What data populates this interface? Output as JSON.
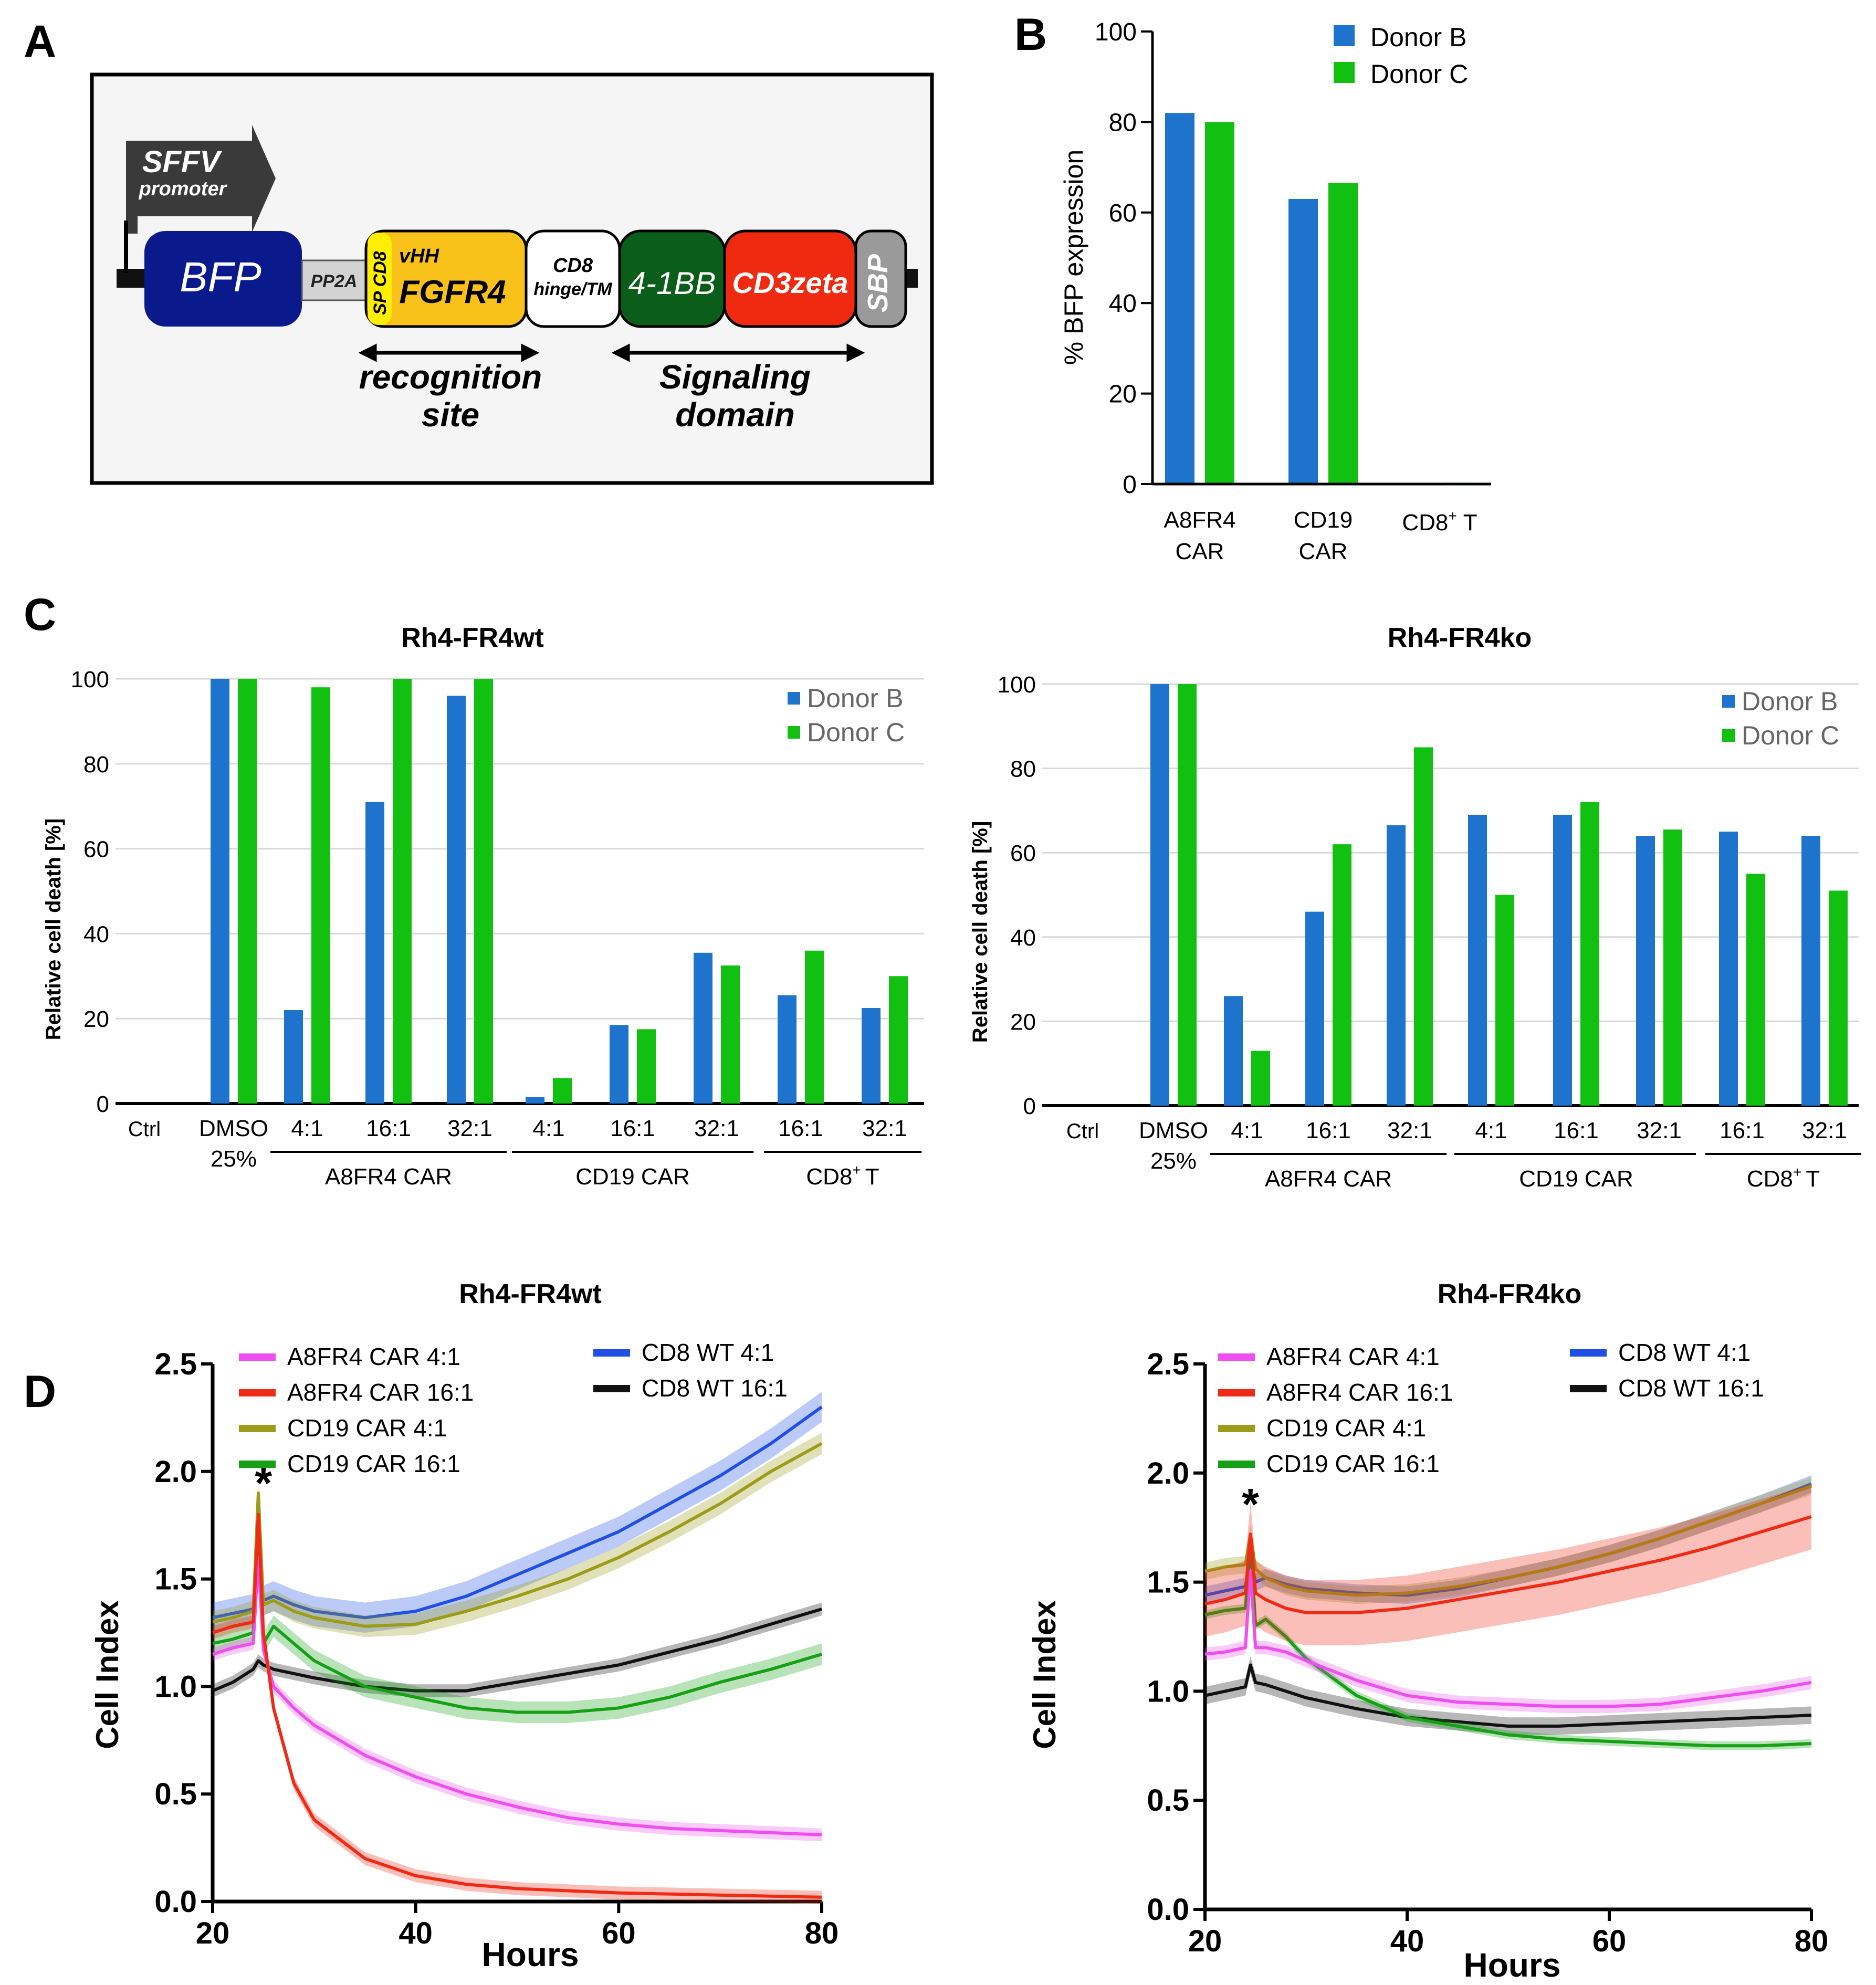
{
  "colors": {
    "donor_b": "#1e73cc",
    "donor_c": "#12c012",
    "grid": "#d8d8d8",
    "axis": "#000000",
    "a8fr4_4": "#ee4fee",
    "a8fr4_16": "#f02a14",
    "cd19_4": "#9c9c18",
    "cd19_16": "#15a015",
    "cd8_4": "#1f4fe6",
    "cd8_16": "#111111"
  },
  "panel_a": {
    "letter": "A",
    "promoter_name": "SFFV",
    "promoter_sub": "promoter",
    "segments": {
      "bfp": "BFP",
      "pp2a": "PP2A",
      "sp_cd8": "SP CD8",
      "vhh": "vHH",
      "fgfr4": "FGFR4",
      "cd8_hinge_1": "CD8",
      "cd8_hinge_2": "hinge/TM",
      "bb": "4-1BB",
      "cd3zeta": "CD3zeta",
      "sbp": "SBP"
    },
    "recognition_1": "recognition",
    "recognition_2": "site",
    "signaling_1": "Signaling",
    "signaling_2": "domain",
    "colors": {
      "bfp": "#0a1a8c",
      "pp2a": "#d2d2d2",
      "sp": "#ffee00",
      "fgfr4": "#f8c21a",
      "bb": "#0b5e1a",
      "cd3zeta": "#ef2a10",
      "sbp": "#9a9a9a",
      "promoter": "#3a3a3a"
    }
  },
  "panel_b": {
    "letter": "B",
    "ylabel": "% BFP expression",
    "ticks": [
      "0",
      "20",
      "40",
      "60",
      "80",
      "100"
    ],
    "legend": [
      "Donor B",
      "Donor C"
    ],
    "cat_a8_1": "A8FR4",
    "cat_a8_2": "CAR",
    "cat_cd19_1": "CD19",
    "cat_cd19_2": "CAR",
    "cat_cd8": "CD8",
    "cat_cd8_sup": "+",
    "cat_cd8_t": "T"
  },
  "panel_c": {
    "letter": "C",
    "ylabel": "Relative cell death [%]",
    "ticks": [
      "0",
      "20",
      "40",
      "60",
      "80",
      "100"
    ],
    "legend": [
      "Donor B",
      "Donor C"
    ],
    "xlabels": [
      "Ctrl",
      "DMSO",
      "4:1",
      "16:1",
      "32:1",
      "4:1",
      "16:1",
      "32:1",
      "16:1",
      "32:1"
    ],
    "dmso_pct": "25%",
    "group_a8": "A8FR4  CAR",
    "group_cd19": "CD19  CAR",
    "group_cd8": "CD8",
    "group_cd8_sup": "+",
    "group_cd8_t": "T"
  },
  "panel_d": {
    "letter": "D",
    "ylabel": "Cell Index",
    "xlabel": "Hours",
    "yticks": [
      "0.0",
      "0.5",
      "1.0",
      "1.5",
      "2.0",
      "2.5"
    ],
    "xticks": [
      "20",
      "40",
      "60",
      "80"
    ],
    "star": "*",
    "legend_left": [
      "A8FR4 CAR   4:1",
      "A8FR4 CAR 16:1",
      "CD19 CAR   4:1",
      "CD19 CAR 16:1"
    ],
    "legend_right": [
      "CD8 WT   4:1",
      "CD8 WT 16:1"
    ]
  },
  "chart_data": [
    {
      "type": "bar",
      "panel": "B",
      "title": "",
      "ylabel": "% BFP expression",
      "ylim": [
        0,
        100
      ],
      "categories": [
        "A8FR4 CAR",
        "CD19 CAR",
        "CD8+ T"
      ],
      "series": [
        {
          "name": "Donor B",
          "values": [
            82,
            63,
            0
          ]
        },
        {
          "name": "Donor C",
          "values": [
            80,
            66.5,
            0.3
          ]
        }
      ]
    },
    {
      "type": "bar",
      "panel": "C-left",
      "title": "Rh4-FR4wt",
      "ylabel": "Relative cell death [%]",
      "ylim": [
        0,
        100
      ],
      "categories": [
        "Ctrl",
        "DMSO 25%",
        "A8FR4 CAR 4:1",
        "A8FR4 CAR 16:1",
        "A8FR4 CAR 32:1",
        "CD19 CAR 4:1",
        "CD19 CAR 16:1",
        "CD19 CAR 32:1",
        "CD8+ T 16:1",
        "CD8+ T 32:1"
      ],
      "series": [
        {
          "name": "Donor B",
          "values": [
            0,
            100,
            22,
            71,
            96,
            1.5,
            18.5,
            35.5,
            25.5,
            22.5
          ]
        },
        {
          "name": "Donor C",
          "values": [
            0,
            100,
            98,
            100,
            100,
            6,
            17.5,
            32.5,
            36,
            30
          ]
        }
      ]
    },
    {
      "type": "bar",
      "panel": "C-right",
      "title": "Rh4-FR4ko",
      "ylabel": "Relative cell death [%]",
      "ylim": [
        0,
        100
      ],
      "categories": [
        "Ctrl",
        "DMSO 25%",
        "A8FR4 CAR 4:1",
        "A8FR4 CAR 16:1",
        "A8FR4 CAR 32:1",
        "CD19 CAR 4:1",
        "CD19 CAR 16:1",
        "CD19 CAR 32:1",
        "CD8+ T 16:1",
        "CD8+ T 32:1"
      ],
      "series": [
        {
          "name": "Donor B",
          "values": [
            0,
            100,
            26,
            46,
            66.5,
            69,
            69,
            64,
            65,
            64
          ]
        },
        {
          "name": "Donor C",
          "values": [
            0,
            100,
            13,
            62,
            85,
            50,
            72,
            65.5,
            55,
            51
          ]
        }
      ]
    },
    {
      "type": "line",
      "panel": "D-left",
      "title": "Rh4-FR4wt",
      "xlabel": "Hours",
      "ylabel": "Cell Index",
      "xlim": [
        20,
        80
      ],
      "ylim": [
        0,
        2.5
      ],
      "annotations": [
        {
          "text": "*",
          "x": 25,
          "y": 1.95
        }
      ],
      "series": [
        {
          "name": "A8FR4 CAR 4:1",
          "color_key": "a8fr4_4",
          "x": [
            20,
            22,
            24,
            24.5,
            25,
            26,
            28,
            30,
            35,
            40,
            45,
            50,
            55,
            60,
            65,
            70,
            75,
            80
          ],
          "y": [
            1.15,
            1.18,
            1.2,
            1.6,
            1.17,
            1.0,
            0.9,
            0.82,
            0.68,
            0.58,
            0.5,
            0.44,
            0.39,
            0.36,
            0.34,
            0.33,
            0.32,
            0.31
          ],
          "err": 0.03
        },
        {
          "name": "A8FR4 CAR 16:1",
          "color_key": "a8fr4_16",
          "x": [
            20,
            22,
            24,
            24.5,
            25,
            26,
            28,
            30,
            35,
            40,
            45,
            50,
            55,
            60,
            65,
            70,
            75,
            80
          ],
          "y": [
            1.25,
            1.28,
            1.3,
            1.8,
            1.25,
            0.9,
            0.55,
            0.38,
            0.2,
            0.12,
            0.08,
            0.06,
            0.05,
            0.04,
            0.035,
            0.03,
            0.025,
            0.02
          ],
          "err": 0.03
        },
        {
          "name": "CD19 CAR 4:1",
          "color_key": "cd19_4",
          "x": [
            20,
            22,
            24,
            24.5,
            25,
            26,
            28,
            30,
            35,
            40,
            45,
            50,
            55,
            60,
            65,
            70,
            75,
            80
          ],
          "y": [
            1.3,
            1.32,
            1.35,
            1.9,
            1.38,
            1.4,
            1.35,
            1.32,
            1.28,
            1.29,
            1.35,
            1.42,
            1.5,
            1.6,
            1.72,
            1.85,
            2.0,
            2.13
          ],
          "err": 0.05
        },
        {
          "name": "CD19 CAR 16:1",
          "color_key": "cd19_16",
          "x": [
            20,
            22,
            24,
            24.5,
            25,
            26,
            28,
            30,
            35,
            40,
            45,
            50,
            55,
            60,
            65,
            70,
            75,
            80
          ],
          "y": [
            1.2,
            1.22,
            1.25,
            1.65,
            1.2,
            1.28,
            1.2,
            1.12,
            1.0,
            0.95,
            0.9,
            0.88,
            0.88,
            0.9,
            0.95,
            1.02,
            1.08,
            1.15
          ],
          "err": 0.05
        },
        {
          "name": "CD8 WT 4:1",
          "color_key": "cd8_4",
          "x": [
            20,
            22,
            24,
            24.5,
            25,
            26,
            28,
            30,
            35,
            40,
            45,
            50,
            55,
            60,
            65,
            70,
            75,
            80
          ],
          "y": [
            1.32,
            1.34,
            1.36,
            1.6,
            1.4,
            1.42,
            1.38,
            1.35,
            1.32,
            1.35,
            1.42,
            1.52,
            1.62,
            1.72,
            1.85,
            1.98,
            2.13,
            2.3
          ],
          "err": 0.07
        },
        {
          "name": "CD8 WT 16:1",
          "color_key": "cd8_16",
          "x": [
            20,
            22,
            24,
            24.5,
            25,
            26,
            28,
            30,
            35,
            40,
            45,
            50,
            55,
            60,
            65,
            70,
            75,
            80
          ],
          "y": [
            0.98,
            1.02,
            1.08,
            1.12,
            1.1,
            1.08,
            1.06,
            1.04,
            1.0,
            0.98,
            0.98,
            1.02,
            1.06,
            1.1,
            1.16,
            1.22,
            1.29,
            1.36
          ],
          "err": 0.03
        }
      ]
    },
    {
      "type": "line",
      "panel": "D-right",
      "title": "Rh4-FR4ko",
      "xlabel": "Hours",
      "ylabel": "Cell Index",
      "xlim": [
        20,
        80
      ],
      "ylim": [
        0,
        2.5
      ],
      "annotations": [
        {
          "text": "*",
          "x": 24.5,
          "y": 1.86
        }
      ],
      "series": [
        {
          "name": "A8FR4 CAR 4:1",
          "color_key": "a8fr4_4",
          "x": [
            20,
            22,
            24,
            24.5,
            25,
            26,
            28,
            30,
            35,
            40,
            45,
            50,
            55,
            60,
            65,
            70,
            75,
            80
          ],
          "y": [
            1.17,
            1.18,
            1.2,
            1.55,
            1.2,
            1.2,
            1.18,
            1.14,
            1.05,
            0.98,
            0.95,
            0.94,
            0.93,
            0.93,
            0.94,
            0.97,
            1.0,
            1.04
          ],
          "err": 0.03
        },
        {
          "name": "A8FR4 CAR 16:1",
          "color_key": "a8fr4_16",
          "x": [
            20,
            22,
            24,
            24.5,
            25,
            26,
            28,
            30,
            35,
            40,
            45,
            50,
            55,
            60,
            65,
            70,
            75,
            80
          ],
          "y": [
            1.4,
            1.42,
            1.45,
            1.72,
            1.45,
            1.42,
            1.38,
            1.36,
            1.36,
            1.38,
            1.42,
            1.46,
            1.5,
            1.55,
            1.6,
            1.66,
            1.73,
            1.8
          ],
          "err": 0.15
        },
        {
          "name": "CD19 CAR 4:1",
          "color_key": "cd19_4",
          "x": [
            20,
            22,
            24,
            24.5,
            25,
            26,
            28,
            30,
            35,
            40,
            45,
            50,
            55,
            60,
            65,
            70,
            75,
            80
          ],
          "y": [
            1.55,
            1.57,
            1.58,
            1.72,
            1.56,
            1.52,
            1.48,
            1.46,
            1.44,
            1.45,
            1.48,
            1.52,
            1.57,
            1.63,
            1.7,
            1.78,
            1.86,
            1.94
          ],
          "err": 0.04
        },
        {
          "name": "CD19 CAR 16:1",
          "color_key": "cd19_16",
          "x": [
            20,
            22,
            24,
            24.5,
            25,
            26,
            28,
            30,
            35,
            40,
            45,
            50,
            55,
            60,
            65,
            70,
            75,
            80
          ],
          "y": [
            1.35,
            1.37,
            1.38,
            1.7,
            1.3,
            1.33,
            1.25,
            1.15,
            0.98,
            0.88,
            0.84,
            0.8,
            0.78,
            0.77,
            0.76,
            0.75,
            0.75,
            0.76
          ],
          "err": 0.02
        },
        {
          "name": "CD8 WT 4:1",
          "color_key": "cd8_4",
          "x": [
            20,
            22,
            24,
            24.5,
            25,
            26,
            28,
            30,
            35,
            40,
            45,
            50,
            55,
            60,
            65,
            70,
            75,
            80
          ],
          "y": [
            1.44,
            1.46,
            1.48,
            1.6,
            1.5,
            1.52,
            1.49,
            1.47,
            1.45,
            1.44,
            1.47,
            1.52,
            1.57,
            1.63,
            1.7,
            1.78,
            1.86,
            1.95
          ],
          "err": 0.04
        },
        {
          "name": "CD8 WT 16:1",
          "color_key": "cd8_16",
          "x": [
            20,
            22,
            24,
            24.5,
            25,
            26,
            28,
            30,
            35,
            40,
            45,
            50,
            55,
            60,
            65,
            70,
            75,
            80
          ],
          "y": [
            0.98,
            1.0,
            1.02,
            1.12,
            1.04,
            1.03,
            1.0,
            0.97,
            0.92,
            0.88,
            0.86,
            0.84,
            0.84,
            0.85,
            0.86,
            0.87,
            0.88,
            0.89
          ],
          "err": 0.04
        }
      ]
    }
  ]
}
